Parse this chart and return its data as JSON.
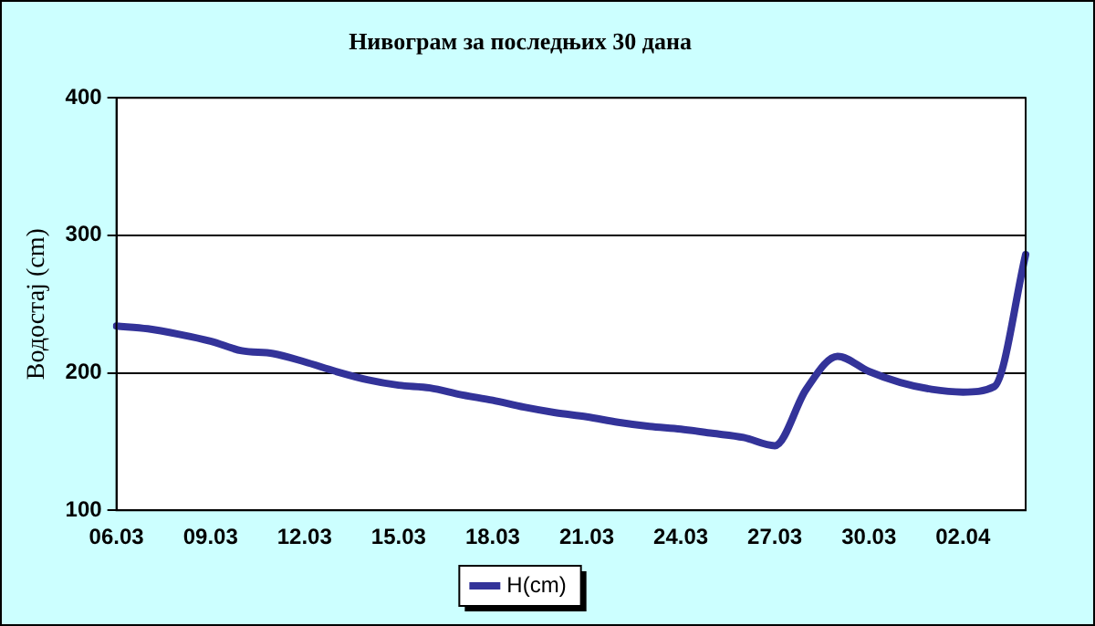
{
  "chart_data": {
    "type": "line",
    "title": "Нивограм за последњих 30 дана",
    "ylabel": "Водостај (cm)",
    "categories": [
      "06.03",
      null,
      null,
      "09.03",
      null,
      null,
      "12.03",
      null,
      null,
      "15.03",
      null,
      null,
      "18.03",
      null,
      null,
      "21.03",
      null,
      null,
      "24.03",
      null,
      null,
      "27.03",
      null,
      null,
      "30.03",
      null,
      null,
      "02.04",
      null,
      null
    ],
    "series": [
      {
        "name": "H(cm)",
        "color": "#333399",
        "values": [
          234,
          232,
          228,
          223,
          216,
          214,
          208,
          201,
          195,
          191,
          189,
          184,
          180,
          175,
          171,
          168,
          164,
          161,
          159,
          156,
          153,
          147,
          188,
          212,
          201,
          193,
          188,
          186,
          190,
          286
        ]
      }
    ],
    "ylim": [
      100,
      400
    ],
    "yticks": [
      100,
      200,
      300,
      400
    ],
    "grid": "y",
    "legend": "bottom"
  }
}
